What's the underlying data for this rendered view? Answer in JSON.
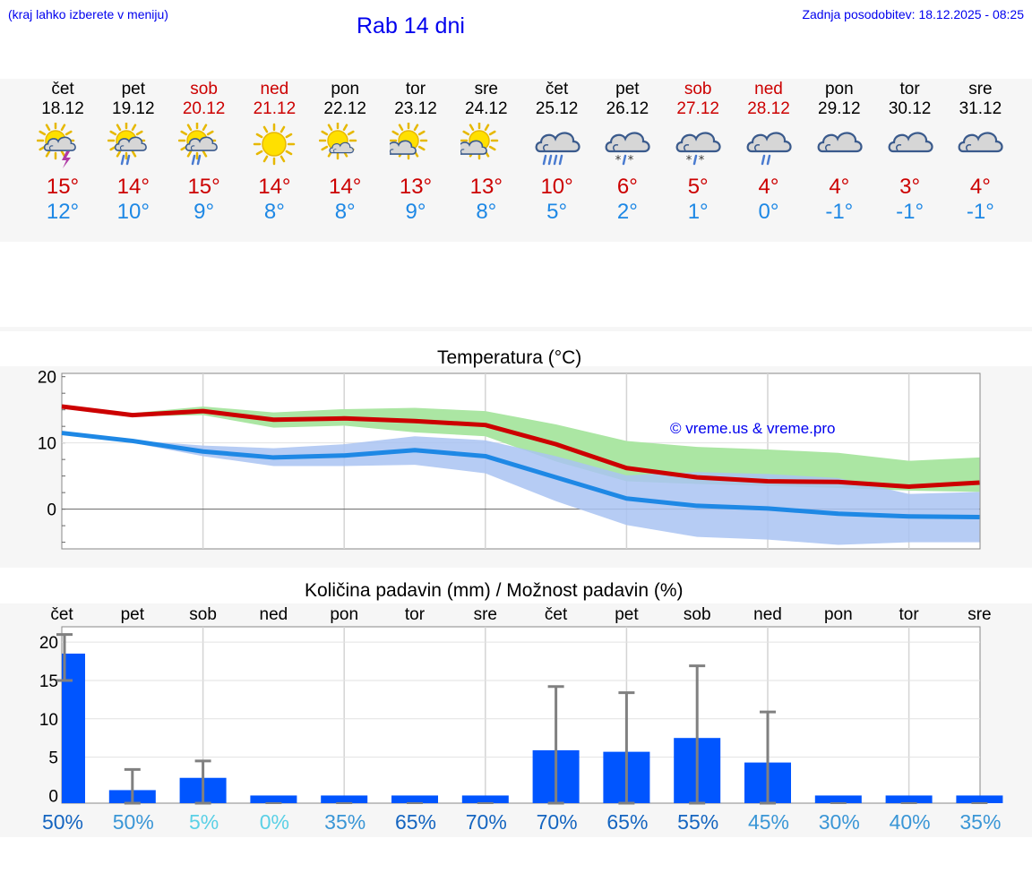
{
  "header": {
    "left_note": "(kraj lahko izberete v meniju)",
    "title": "Rab 14 dni",
    "update": "Zadnja posodobitev: 18.12.2025 - 08:25"
  },
  "forecast": [
    {
      "day": "čet",
      "date": "18.12",
      "weekend": false,
      "icon": "sun-cloud-thunder-icon",
      "tmax": "15°",
      "tmin": "12°"
    },
    {
      "day": "pet",
      "date": "19.12",
      "weekend": false,
      "icon": "sun-cloud-rain-icon",
      "tmax": "14°",
      "tmin": "10°"
    },
    {
      "day": "sob",
      "date": "20.12",
      "weekend": true,
      "icon": "sun-cloud-rain-icon",
      "tmax": "15°",
      "tmin": "9°"
    },
    {
      "day": "ned",
      "date": "21.12",
      "weekend": true,
      "icon": "sun-icon",
      "tmax": "14°",
      "tmin": "8°"
    },
    {
      "day": "pon",
      "date": "22.12",
      "weekend": false,
      "icon": "sun-small-cloud-icon",
      "tmax": "14°",
      "tmin": "8°"
    },
    {
      "day": "tor",
      "date": "23.12",
      "weekend": false,
      "icon": "sun-cloud-icon",
      "tmax": "13°",
      "tmin": "9°"
    },
    {
      "day": "sre",
      "date": "24.12",
      "weekend": false,
      "icon": "sun-cloud-icon",
      "tmax": "13°",
      "tmin": "8°"
    },
    {
      "day": "čet",
      "date": "25.12",
      "weekend": false,
      "icon": "cloud-heavy-rain-icon",
      "tmax": "10°",
      "tmin": "5°"
    },
    {
      "day": "pet",
      "date": "26.12",
      "weekend": false,
      "icon": "cloud-snow-rain-icon",
      "tmax": "6°",
      "tmin": "2°"
    },
    {
      "day": "sob",
      "date": "27.12",
      "weekend": true,
      "icon": "cloud-snow-rain-icon",
      "tmax": "5°",
      "tmin": "1°"
    },
    {
      "day": "ned",
      "date": "28.12",
      "weekend": true,
      "icon": "cloud-rain-icon",
      "tmax": "4°",
      "tmin": "0°"
    },
    {
      "day": "pon",
      "date": "29.12",
      "weekend": false,
      "icon": "cloud-icon",
      "tmax": "4°",
      "tmin": "-1°"
    },
    {
      "day": "tor",
      "date": "30.12",
      "weekend": false,
      "icon": "cloud-icon",
      "tmax": "3°",
      "tmin": "-1°"
    },
    {
      "day": "sre",
      "date": "31.12",
      "weekend": false,
      "icon": "cloud-icon",
      "tmax": "4°",
      "tmin": "-1°"
    }
  ],
  "colors": {
    "link": "#0000ee",
    "weekend": "#cc0000",
    "tmax": "#cc0000",
    "tmin": "#1e88e5",
    "max_band": "#abe6a3",
    "min_band": "#a9c3f2",
    "bar": "#0055ff",
    "error": "#808080"
  },
  "chart_data": [
    {
      "type": "line",
      "title": "Temperatura (°C)",
      "watermark": "© vreme.us & vreme.pro",
      "yticks": [
        "20",
        "10",
        "0"
      ],
      "ylim": [
        -6,
        20.5
      ],
      "x": [
        0,
        1,
        2,
        3,
        4,
        5,
        6,
        7,
        8,
        9,
        10,
        11,
        12,
        13
      ],
      "series": [
        {
          "name": "tmax",
          "values": [
            15.5,
            14.2,
            14.8,
            13.5,
            13.7,
            13.3,
            12.7,
            9.8,
            6.2,
            4.8,
            4.2,
            4.1,
            3.4,
            4.0
          ],
          "band_low": [
            15.5,
            14.0,
            14.2,
            12.3,
            12.6,
            11.6,
            11.0,
            7.2,
            4.2,
            3.8,
            3.5,
            3.2,
            2.8,
            2.6
          ],
          "band_high": [
            15.5,
            14.5,
            15.5,
            14.6,
            15.1,
            15.3,
            14.8,
            12.8,
            10.3,
            9.4,
            9.0,
            8.5,
            7.3,
            7.8
          ]
        },
        {
          "name": "tmin",
          "values": [
            11.5,
            10.3,
            8.7,
            7.8,
            8.1,
            8.9,
            8.0,
            4.8,
            1.6,
            0.5,
            0.1,
            -0.7,
            -1.1,
            -1.2
          ],
          "band_low": [
            11.5,
            10.0,
            8.0,
            6.5,
            6.5,
            6.7,
            5.4,
            1.2,
            -2.4,
            -4.2,
            -4.6,
            -5.4,
            -5.0,
            -5.0
          ],
          "band_high": [
            11.5,
            10.4,
            9.6,
            9.2,
            9.8,
            11.0,
            10.4,
            8.0,
            5.1,
            5.6,
            5.3,
            4.7,
            2.3,
            2.6
          ]
        }
      ]
    },
    {
      "type": "bar",
      "title": "Količina padavin (mm) / Možnost padavin (%)",
      "categories": [
        "čet",
        "pet",
        "sob",
        "ned",
        "pon",
        "tor",
        "sre",
        "čet",
        "pet",
        "sob",
        "ned",
        "pon",
        "tor",
        "sre"
      ],
      "yticks": [
        "20",
        "15",
        "10",
        "5",
        "0"
      ],
      "ylim": [
        -1,
        22
      ],
      "values": [
        18.5,
        0.7,
        2.3,
        0,
        0,
        0,
        0,
        5.9,
        5.7,
        7.5,
        4.3,
        0,
        0,
        0
      ],
      "error_high": [
        21.0,
        3.4,
        4.5,
        0,
        0,
        0,
        0,
        14.2,
        13.4,
        16.9,
        10.9,
        0,
        0,
        0
      ],
      "error_low": [
        15.0,
        0,
        0,
        0,
        0,
        0,
        0,
        0,
        0,
        0,
        0,
        0,
        0,
        0
      ],
      "probability": [
        "50%",
        "50%",
        "5%",
        "0%",
        "35%",
        "65%",
        "70%",
        "70%",
        "65%",
        "55%",
        "45%",
        "30%",
        "40%",
        "35%"
      ],
      "probability_colors": [
        "#1565c0",
        "#3a96d6",
        "#5ad0e6",
        "#5ad0e6",
        "#3a96d6",
        "#1565c0",
        "#1565c0",
        "#1565c0",
        "#1565c0",
        "#1565c0",
        "#3a96d6",
        "#3a96d6",
        "#3a96d6",
        "#3a96d6"
      ]
    }
  ]
}
